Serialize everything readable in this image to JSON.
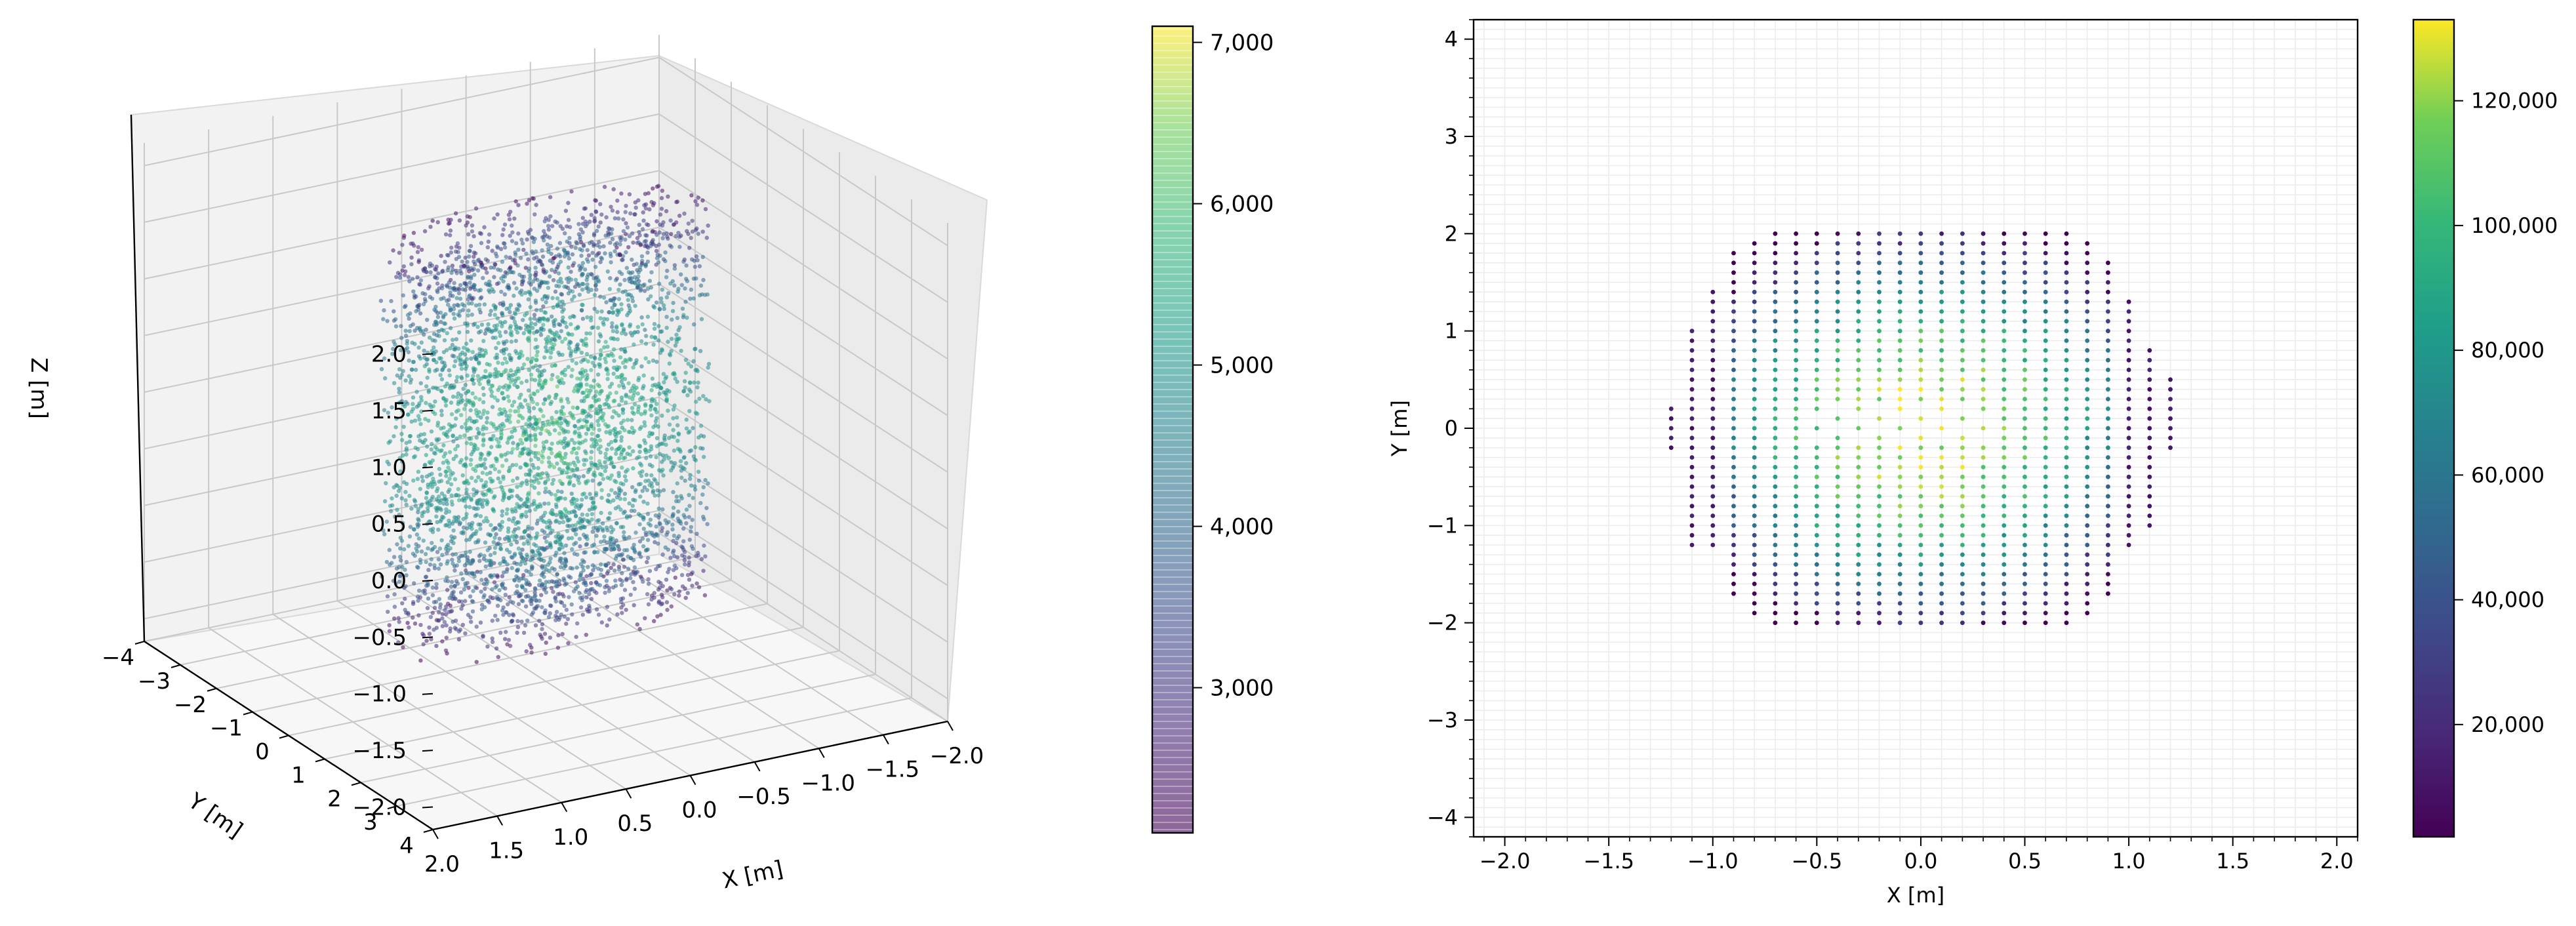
{
  "chart_data": [
    {
      "type": "scatter3d",
      "title": "",
      "xlabel": "X [m]",
      "ylabel": "Y [m]",
      "zlabel": "Z [m]",
      "xlim": [
        -2.0,
        2.0
      ],
      "ylim": [
        -4,
        4
      ],
      "zlim": [
        -2.0,
        2.0
      ],
      "xticks": [
        "2.0",
        "1.5",
        "1.0",
        "0.5",
        "0.0",
        "−0.5",
        "−1.0",
        "−1.5",
        "−2.0"
      ],
      "yticks": [
        "−4",
        "−3",
        "−2",
        "−1",
        "0",
        "1",
        "2",
        "3",
        "4"
      ],
      "zticks": [
        "2.0",
        "1.5",
        "1.0",
        "0.5",
        "0.0",
        "−0.5",
        "−1.0",
        "−1.5",
        "−2.0"
      ],
      "grid": true,
      "colormap": "viridis",
      "point_alpha": 0.55,
      "points_description": "voxelized occupancy point cloud roughly a cylinder of radius ~1.2 m spanning Z from about -1.6 m to 1.8 m",
      "colorbar": {
        "min": 2100,
        "max": 7100,
        "ticks": [
          "3,000",
          "4,000",
          "5,000",
          "6,000",
          "7,000"
        ],
        "tick_values": [
          3000,
          4000,
          5000,
          6000,
          7000
        ]
      }
    },
    {
      "type": "scatter",
      "title": "",
      "xlabel": "X [m]",
      "ylabel": "Y [m]",
      "xlim": [
        -2.15,
        2.1
      ],
      "ylim": [
        -4.2,
        4.2
      ],
      "xticks": [
        "−2.0",
        "−1.5",
        "−1.0",
        "−0.5",
        "0.0",
        "0.5",
        "1.0",
        "1.5",
        "2.0"
      ],
      "xtick_values": [
        -2.0,
        -1.5,
        -1.0,
        -0.5,
        0.0,
        0.5,
        1.0,
        1.5,
        2.0
      ],
      "yticks": [
        "−4",
        "−3",
        "−2",
        "−1",
        "0",
        "1",
        "2",
        "3",
        "4"
      ],
      "ytick_values": [
        -4,
        -3,
        -2,
        -1,
        0,
        1,
        2,
        3,
        4
      ],
      "grid": true,
      "grid_step": 0.1,
      "colormap": "viridis",
      "point_spacing": [
        0.1,
        0.1
      ],
      "columns": [
        {
          "x": -1.2,
          "y_min": -0.2,
          "y_max": 0.2
        },
        {
          "x": -1.1,
          "y_min": -1.2,
          "y_max": 1.0
        },
        {
          "x": -1.0,
          "y_min": -1.2,
          "y_max": 1.4
        },
        {
          "x": -0.9,
          "y_min": -1.7,
          "y_max": 1.8
        },
        {
          "x": -0.8,
          "y_min": -1.9,
          "y_max": 1.9
        },
        {
          "x": -0.7,
          "y_min": -2.0,
          "y_max": 2.0
        },
        {
          "x": -0.6,
          "y_min": -2.0,
          "y_max": 2.0
        },
        {
          "x": -0.5,
          "y_min": -2.0,
          "y_max": 2.0
        },
        {
          "x": -0.4,
          "y_min": -2.0,
          "y_max": 2.0
        },
        {
          "x": -0.3,
          "y_min": -2.0,
          "y_max": 2.0
        },
        {
          "x": -0.2,
          "y_min": -2.0,
          "y_max": 2.0
        },
        {
          "x": -0.1,
          "y_min": -2.0,
          "y_max": 2.0
        },
        {
          "x": 0.0,
          "y_min": -2.0,
          "y_max": 2.0
        },
        {
          "x": 0.1,
          "y_min": -2.0,
          "y_max": 2.0
        },
        {
          "x": 0.2,
          "y_min": -2.0,
          "y_max": 2.0
        },
        {
          "x": 0.3,
          "y_min": -2.0,
          "y_max": 2.0
        },
        {
          "x": 0.4,
          "y_min": -2.0,
          "y_max": 2.0
        },
        {
          "x": 0.5,
          "y_min": -2.0,
          "y_max": 2.0
        },
        {
          "x": 0.6,
          "y_min": -2.0,
          "y_max": 2.0
        },
        {
          "x": 0.7,
          "y_min": -2.0,
          "y_max": 2.0
        },
        {
          "x": 0.8,
          "y_min": -1.9,
          "y_max": 1.9
        },
        {
          "x": 0.9,
          "y_min": -1.7,
          "y_max": 1.7
        },
        {
          "x": 1.0,
          "y_min": -1.2,
          "y_max": 1.3
        },
        {
          "x": 1.1,
          "y_min": -1.0,
          "y_max": 0.8
        },
        {
          "x": 1.2,
          "y_min": -0.2,
          "y_max": 0.5
        }
      ],
      "hole": {
        "x_min": -0.5,
        "x_max": 0.3,
        "y_min": -0.1,
        "y_max": 0.2
      },
      "colorbar": {
        "min": 2000,
        "max": 133000,
        "ticks": [
          "20,000",
          "40,000",
          "60,000",
          "80,000",
          "100,000",
          "120,000"
        ],
        "tick_values": [
          20000,
          40000,
          60000,
          80000,
          100000,
          120000
        ]
      }
    }
  ]
}
